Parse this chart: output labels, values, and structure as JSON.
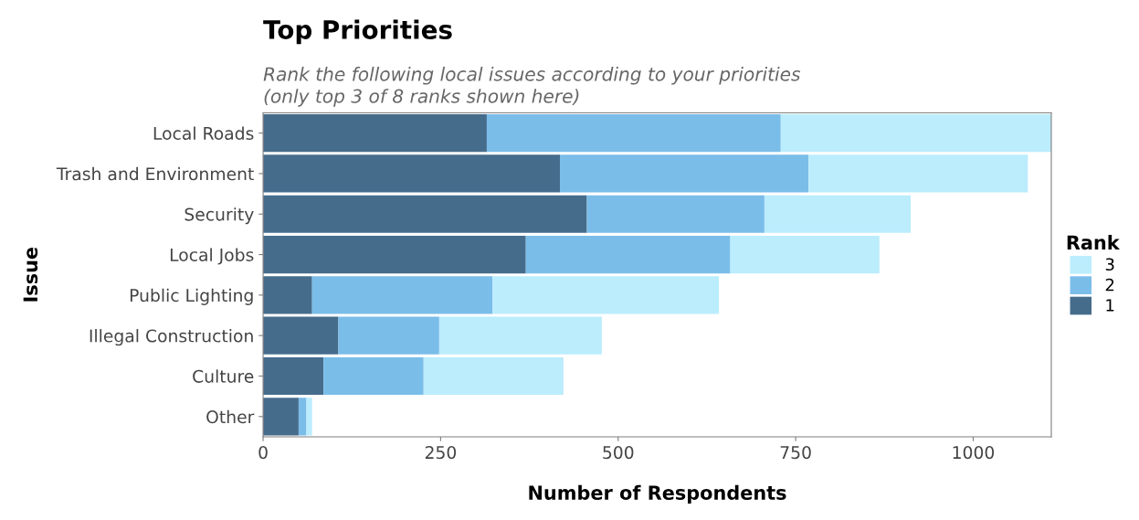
{
  "chart_data": {
    "type": "bar",
    "orientation": "horizontal",
    "stacked": true,
    "title": "Top Priorities",
    "subtitle": "Rank the following local issues according to your priorities\n(only top 3 of 8 ranks shown here)",
    "xlabel": "Number of Respondents",
    "ylabel": "Issue",
    "legend_title": "Rank",
    "categories": [
      "Local Roads",
      "Trash and Environment",
      "Security",
      "Local Jobs",
      "Public Lighting",
      "Illegal Construction",
      "Culture",
      "Other"
    ],
    "series": [
      {
        "name": "1",
        "color": "#466c8c",
        "values": [
          315,
          418,
          456,
          370,
          69,
          106,
          85,
          50
        ]
      },
      {
        "name": "2",
        "color": "#7bbde9",
        "values": [
          414,
          350,
          250,
          288,
          254,
          142,
          141,
          11
        ]
      },
      {
        "name": "3",
        "color": "#bbedfd",
        "values": [
          381,
          309,
          206,
          210,
          319,
          229,
          197,
          8
        ]
      }
    ],
    "xlim": [
      0,
      1110
    ],
    "xticks": [
      0,
      250,
      500,
      750,
      1000
    ],
    "grid": false,
    "legend": "right"
  }
}
